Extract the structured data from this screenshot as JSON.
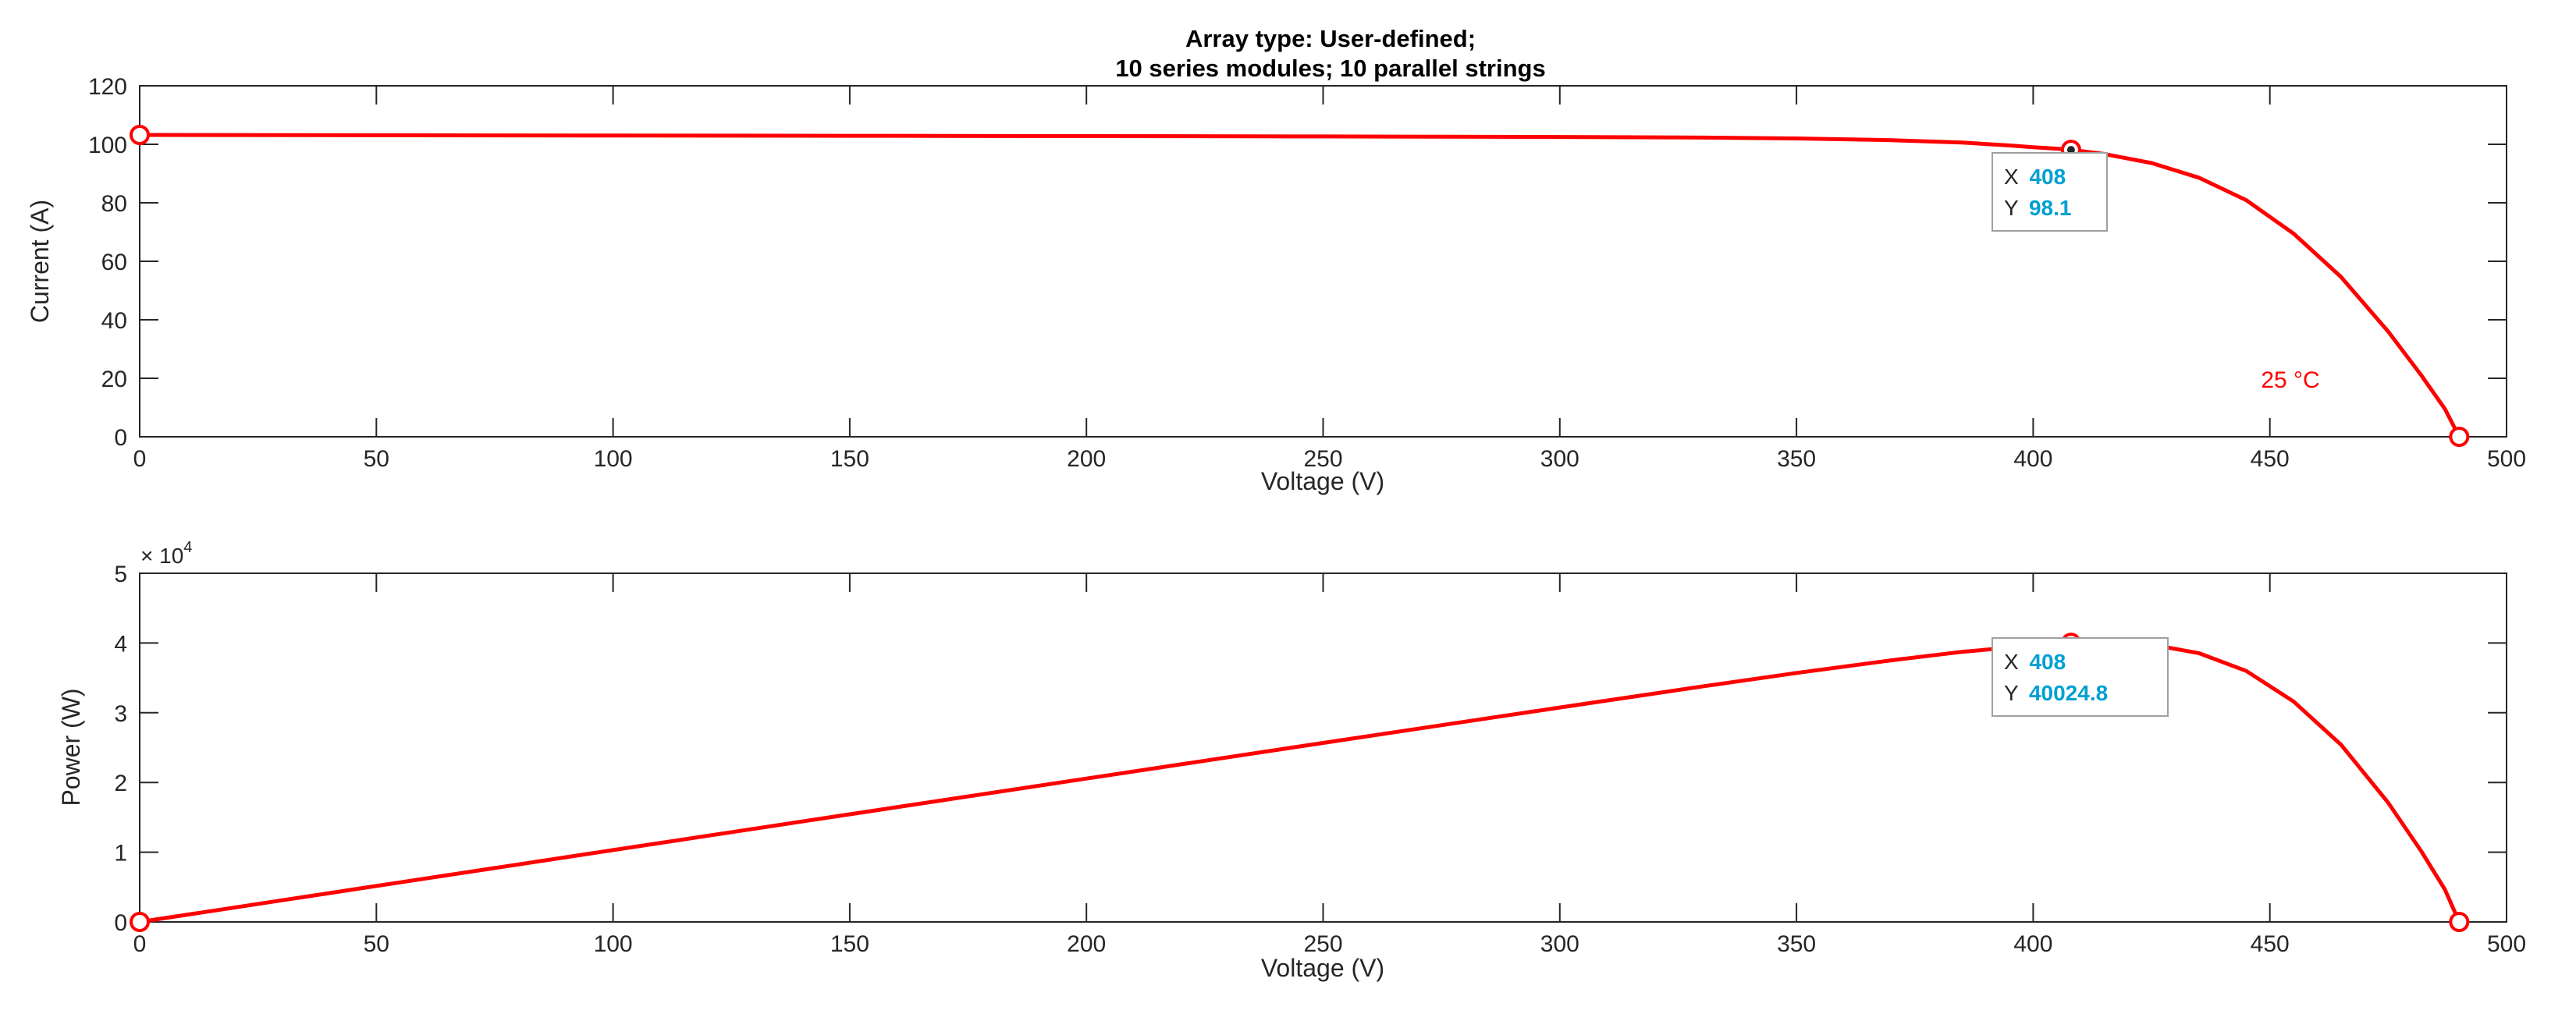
{
  "chart_data": [
    {
      "type": "line",
      "title_lines": [
        "Array type: User-defined;",
        "10 series modules; 10 parallel strings"
      ],
      "xlabel": "Voltage (V)",
      "ylabel": "Current (A)",
      "xlim": [
        0,
        500
      ],
      "ylim": [
        0,
        120
      ],
      "xticks": [
        0,
        50,
        100,
        150,
        200,
        250,
        300,
        350,
        400,
        450,
        500
      ],
      "yticks": [
        0,
        20,
        40,
        60,
        80,
        100,
        120
      ],
      "grid": false,
      "series": [
        {
          "name": "25 °C",
          "color": "#ff0000",
          "x": [
            0,
            50,
            100,
            150,
            200,
            250,
            300,
            330,
            350,
            370,
            385,
            395,
            400,
            405,
            408,
            415,
            425,
            435,
            445,
            455,
            465,
            475,
            482,
            487,
            490
          ],
          "y": [
            103.2,
            103.1,
            103.0,
            102.9,
            102.8,
            102.7,
            102.5,
            102.3,
            102.0,
            101.4,
            100.6,
            99.6,
            99.0,
            98.5,
            98.1,
            96.7,
            93.6,
            88.6,
            80.9,
            69.5,
            54.7,
            36.0,
            21.0,
            9.5,
            0
          ]
        }
      ],
      "markers": [
        {
          "x": 0,
          "y": 103.2
        },
        {
          "x": 408,
          "y": 98.1
        },
        {
          "x": 490,
          "y": 0
        }
      ],
      "series_label": {
        "text": "25 °C",
        "x": 465,
        "y": 20
      },
      "datatip": {
        "x_label": "X",
        "x_value": "408",
        "y_label": "Y",
        "y_value": "98.1",
        "point": {
          "x": 408,
          "y": 98.1
        }
      },
      "datatip_value_color": "#00a0d2"
    },
    {
      "type": "line",
      "xlabel": "Voltage (V)",
      "ylabel": "Power (W)",
      "xlim": [
        0,
        500
      ],
      "ylim": [
        0,
        50000
      ],
      "xticks": [
        0,
        50,
        100,
        150,
        200,
        250,
        300,
        350,
        400,
        450,
        500
      ],
      "yticks": [
        0,
        1,
        2,
        3,
        4,
        5
      ],
      "y_exponent_base": "× 10",
      "y_exponent_power": "4",
      "grid": false,
      "series": [
        {
          "name": "25 °C",
          "color": "#ff0000",
          "x": [
            0,
            50,
            100,
            150,
            200,
            250,
            300,
            330,
            350,
            370,
            385,
            395,
            400,
            405,
            408,
            415,
            425,
            435,
            445,
            455,
            465,
            475,
            482,
            487,
            490
          ],
          "y": [
            0,
            5155,
            10300,
            15435,
            20560,
            25675,
            30750,
            33759,
            35700,
            37518,
            38731,
            39342,
            39600,
            39893,
            40024.8,
            40131,
            39780,
            38541,
            36001,
            31623,
            25436,
            17100,
            10122,
            4627,
            0
          ]
        }
      ],
      "markers": [
        {
          "x": 0,
          "y": 0
        },
        {
          "x": 408,
          "y": 40024.8
        },
        {
          "x": 490,
          "y": 0
        }
      ],
      "datatip": {
        "x_label": "X",
        "x_value": "408",
        "y_label": "Y",
        "y_value": "40024.8",
        "point": {
          "x": 408,
          "y": 40024.8
        }
      },
      "datatip_value_color": "#00a0d2"
    }
  ]
}
